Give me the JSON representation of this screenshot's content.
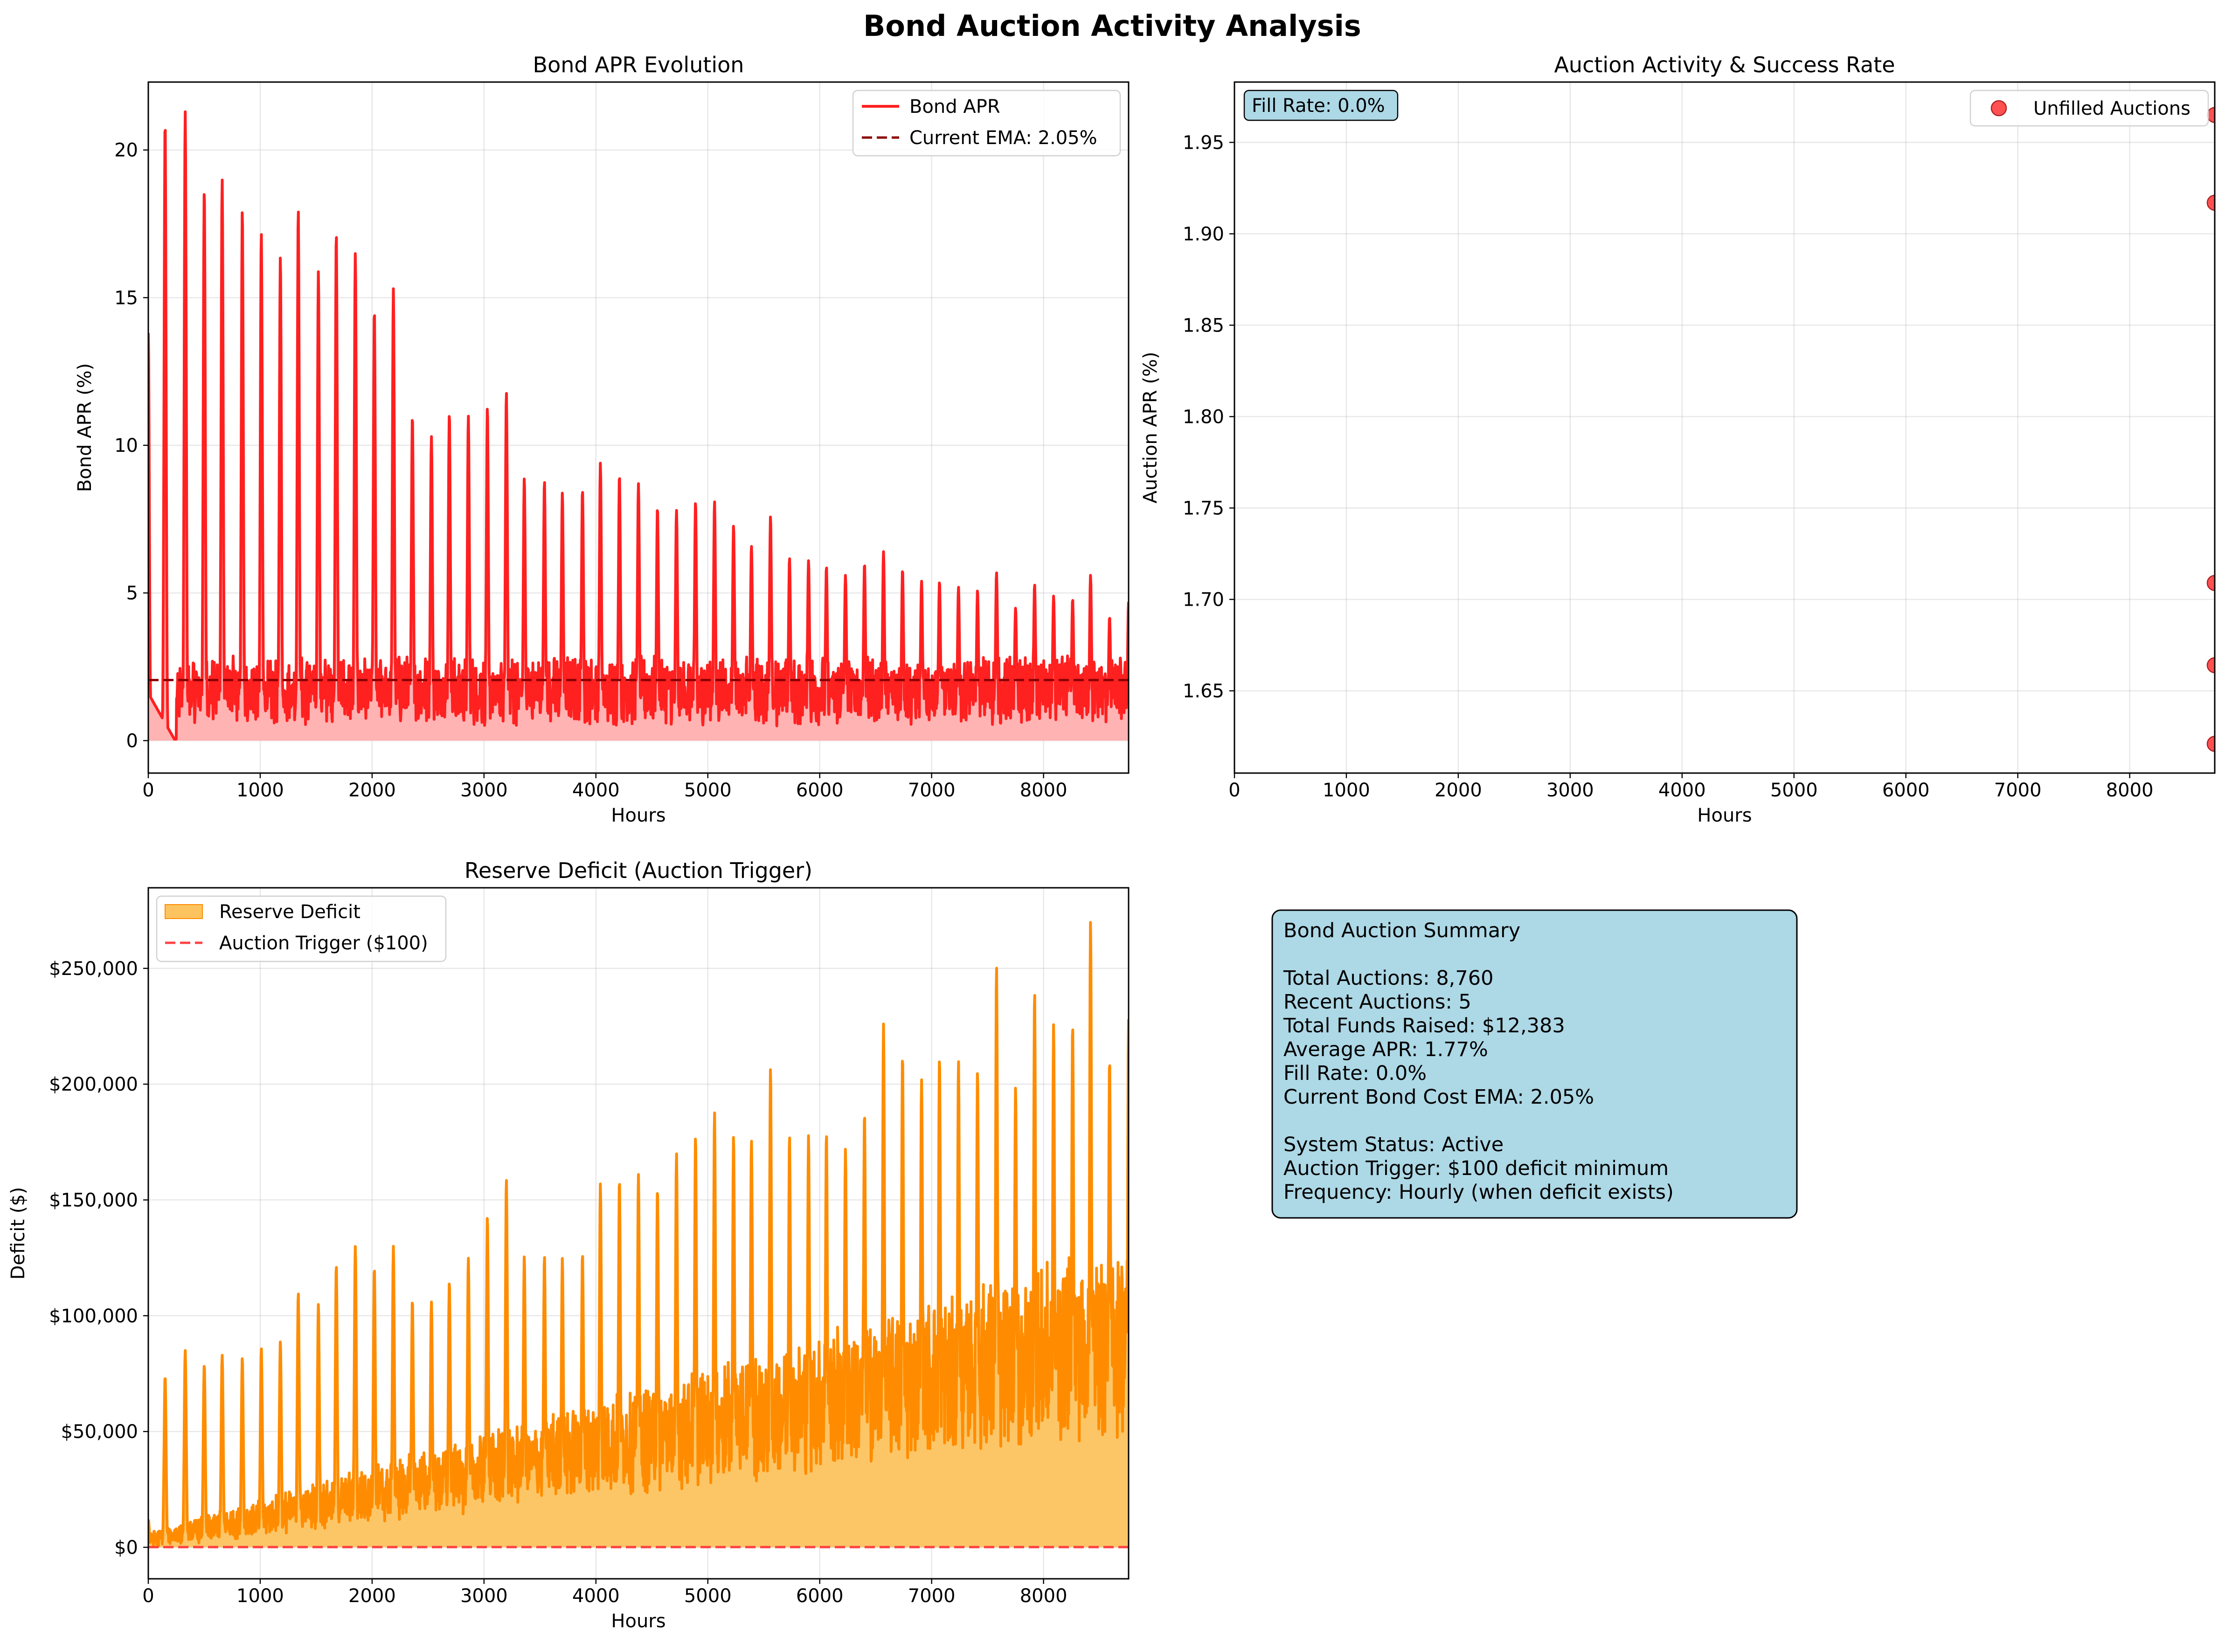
{
  "figure": {
    "title": "Bond Auction Activity Analysis",
    "x_tick_labels": [
      "0",
      "1000",
      "2000",
      "3000",
      "4000",
      "5000",
      "6000",
      "7000",
      "8000"
    ]
  },
  "chart_data": [
    {
      "type": "line",
      "title": "Bond APR Evolution",
      "xlabel": "Hours",
      "ylabel": "Bond APR (%)",
      "xlim": [
        0,
        8760
      ],
      "ylim": [
        -1.1,
        22.3
      ],
      "x_ticks": [
        0,
        1000,
        2000,
        3000,
        4000,
        5000,
        6000,
        7000,
        8000
      ],
      "y_ticks": [
        0,
        5,
        10,
        15,
        20
      ],
      "y_tick_labels": [
        "0",
        "5",
        "10",
        "15",
        "20"
      ],
      "grid": true,
      "legend_position": "top-right",
      "series": [
        {
          "name": "Bond APR",
          "color": "#ff2020",
          "fill": "#ffb3b3",
          "base_level": 1.6,
          "noise_amplitude": 1.7,
          "spike_x": [
            0,
            150,
            330,
            500,
            660,
            840,
            1010,
            1180,
            1340,
            1520,
            1680,
            1850,
            2020,
            2190,
            2360,
            2530,
            2690,
            2860,
            3030,
            3200,
            3360,
            3540,
            3700,
            3880,
            4040,
            4210,
            4380,
            4550,
            4720,
            4890,
            5060,
            5230,
            5390,
            5560,
            5730,
            5900,
            6060,
            6230,
            6400,
            6570,
            6740,
            6910,
            7070,
            7240,
            7410,
            7580,
            7750,
            7920,
            8090,
            8260,
            8420,
            8590,
            8760
          ],
          "spike_y": [
            13.8,
            21.0,
            21.3,
            18.7,
            19.0,
            18.0,
            17.2,
            16.4,
            18.0,
            15.9,
            17.2,
            16.5,
            14.6,
            15.3,
            11.0,
            10.3,
            11.1,
            11.0,
            11.3,
            11.8,
            8.9,
            8.8,
            8.4,
            8.5,
            9.4,
            9.0,
            8.7,
            7.9,
            7.8,
            8.1,
            8.1,
            7.3,
            6.6,
            7.6,
            6.2,
            6.1,
            5.9,
            5.6,
            6.0,
            6.4,
            5.8,
            5.4,
            5.4,
            5.2,
            5.1,
            5.7,
            4.5,
            5.3,
            4.9,
            4.8,
            5.6,
            4.2,
            4.7
          ]
        },
        {
          "name": "Current EMA: 2.05%",
          "color": "#8b0000",
          "style": "dashed",
          "value": 2.05
        }
      ]
    },
    {
      "type": "scatter",
      "title": "Auction Activity & Success Rate",
      "xlabel": "Hours",
      "ylabel": "Auction APR (%)",
      "xlim": [
        0,
        8760
      ],
      "ylim": [
        1.605,
        1.983
      ],
      "x_ticks": [
        0,
        1000,
        2000,
        3000,
        4000,
        5000,
        6000,
        7000,
        8000
      ],
      "y_ticks": [
        1.65,
        1.7,
        1.75,
        1.8,
        1.85,
        1.9,
        1.95
      ],
      "y_tick_labels": [
        "1.65",
        "1.70",
        "1.75",
        "1.80",
        "1.85",
        "1.90",
        "1.95"
      ],
      "grid": true,
      "legend_position": "top-right",
      "annotation": "Fill Rate: 0.0%",
      "series": [
        {
          "name": "Unfilled Auctions",
          "color": "#ff3333",
          "x": [
            8760,
            8760,
            8760,
            8760,
            8760
          ],
          "y": [
            1.965,
            1.917,
            1.709,
            1.664,
            1.621
          ]
        }
      ]
    },
    {
      "type": "area",
      "title": "Reserve Deficit (Auction Trigger)",
      "xlabel": "Hours",
      "ylabel": "Deficit ($)",
      "xlim": [
        0,
        8760
      ],
      "ylim": [
        -13600,
        284800
      ],
      "x_ticks": [
        0,
        1000,
        2000,
        3000,
        4000,
        5000,
        6000,
        7000,
        8000
      ],
      "y_ticks": [
        0,
        50000,
        100000,
        150000,
        200000,
        250000
      ],
      "y_tick_labels": [
        "$0",
        "$50,000",
        "$100,000",
        "$150,000",
        "$200,000",
        "$250,000"
      ],
      "grid": true,
      "legend_position": "top-left",
      "series": [
        {
          "name": "Reserve Deficit",
          "color": "#ff8c00",
          "fill": "#fcc35f",
          "trend_start": 3000,
          "trend_end": 90000,
          "spike_x": [
            0,
            150,
            330,
            500,
            660,
            840,
            1010,
            1180,
            1340,
            1520,
            1680,
            1850,
            2020,
            2190,
            2360,
            2530,
            2690,
            2860,
            3030,
            3200,
            3360,
            3540,
            3700,
            3880,
            4040,
            4210,
            4380,
            4550,
            4720,
            4890,
            5060,
            5230,
            5390,
            5560,
            5730,
            5900,
            6060,
            6230,
            6400,
            6570,
            6740,
            6910,
            7070,
            7240,
            7410,
            7580,
            7750,
            7920,
            8090,
            8260,
            8420,
            8590,
            8760
          ],
          "spike_y": [
            12000,
            74000,
            85000,
            79000,
            83000,
            82000,
            86000,
            89000,
            110000,
            105000,
            122000,
            130000,
            121000,
            130000,
            107000,
            106000,
            115000,
            125000,
            143000,
            159000,
            126000,
            126000,
            125000,
            127000,
            157000,
            159000,
            161000,
            155000,
            170000,
            178000,
            188000,
            178000,
            176000,
            207000,
            178000,
            178000,
            179000,
            172000,
            188000,
            226000,
            213000,
            202000,
            212000,
            210000,
            206000,
            251000,
            199000,
            240000,
            226000,
            226000,
            270000,
            211000,
            228000
          ]
        },
        {
          "name": "Auction Trigger ($100)",
          "color": "#ff4040",
          "style": "dashed",
          "value": 100
        }
      ]
    }
  ],
  "summary": {
    "lines": [
      "Bond Auction Summary",
      "",
      "Total Auctions: 8,760",
      "Recent Auctions: 5",
      "Total Funds Raised: $12,383",
      "Average APR: 1.77%",
      "Fill Rate: 0.0%",
      "Current Bond Cost EMA: 2.05%",
      "",
      "System Status: Active",
      "Auction Trigger: $100 deficit minimum",
      "Frequency: Hourly (when deficit exists)"
    ],
    "background": "#add8e6"
  }
}
